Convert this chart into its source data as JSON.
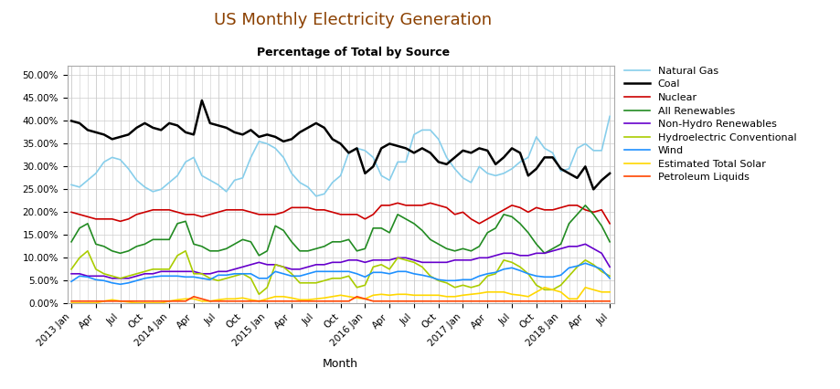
{
  "title": "US Monthly Electricity Generation",
  "subtitle": "Percentage of Total by Source",
  "xlabel": "Month",
  "ylim": [
    0.0,
    0.52
  ],
  "yticks": [
    0.0,
    0.05,
    0.1,
    0.15,
    0.2,
    0.25,
    0.3,
    0.35,
    0.4,
    0.45,
    0.5
  ],
  "title_color": "#8B4000",
  "subtitle_color": "#000000",
  "series": {
    "Natural Gas": {
      "color": "#87CEEB",
      "linewidth": 1.2,
      "values": [
        0.26,
        0.255,
        0.27,
        0.285,
        0.31,
        0.32,
        0.315,
        0.295,
        0.27,
        0.255,
        0.245,
        0.25,
        0.265,
        0.28,
        0.31,
        0.32,
        0.28,
        0.27,
        0.26,
        0.245,
        0.27,
        0.275,
        0.32,
        0.355,
        0.35,
        0.34,
        0.32,
        0.285,
        0.265,
        0.255,
        0.235,
        0.24,
        0.265,
        0.28,
        0.33,
        0.34,
        0.335,
        0.32,
        0.28,
        0.27,
        0.31,
        0.31,
        0.37,
        0.38,
        0.38,
        0.36,
        0.32,
        0.295,
        0.275,
        0.265,
        0.3,
        0.285,
        0.28,
        0.285,
        0.295,
        0.31,
        0.32,
        0.365,
        0.34,
        0.33,
        0.29,
        0.295,
        0.34,
        0.35,
        0.335,
        0.335,
        0.41
      ]
    },
    "Coal": {
      "color": "#000000",
      "linewidth": 1.8,
      "values": [
        0.4,
        0.395,
        0.38,
        0.375,
        0.37,
        0.36,
        0.365,
        0.37,
        0.385,
        0.395,
        0.385,
        0.38,
        0.395,
        0.39,
        0.375,
        0.37,
        0.445,
        0.395,
        0.39,
        0.385,
        0.375,
        0.37,
        0.38,
        0.365,
        0.37,
        0.365,
        0.355,
        0.36,
        0.375,
        0.385,
        0.395,
        0.385,
        0.36,
        0.35,
        0.33,
        0.34,
        0.285,
        0.3,
        0.34,
        0.35,
        0.345,
        0.34,
        0.33,
        0.34,
        0.33,
        0.31,
        0.305,
        0.32,
        0.335,
        0.33,
        0.34,
        0.335,
        0.305,
        0.32,
        0.34,
        0.33,
        0.28,
        0.295,
        0.32,
        0.32,
        0.295,
        0.285,
        0.275,
        0.3,
        0.25,
        0.27,
        0.285
      ]
    },
    "Nuclear": {
      "color": "#CC0000",
      "linewidth": 1.2,
      "values": [
        0.2,
        0.195,
        0.19,
        0.185,
        0.185,
        0.185,
        0.18,
        0.185,
        0.195,
        0.2,
        0.205,
        0.205,
        0.205,
        0.2,
        0.195,
        0.195,
        0.19,
        0.195,
        0.2,
        0.205,
        0.205,
        0.205,
        0.2,
        0.195,
        0.195,
        0.195,
        0.2,
        0.21,
        0.21,
        0.21,
        0.205,
        0.205,
        0.2,
        0.195,
        0.195,
        0.195,
        0.185,
        0.195,
        0.215,
        0.215,
        0.22,
        0.215,
        0.215,
        0.215,
        0.22,
        0.215,
        0.21,
        0.195,
        0.2,
        0.185,
        0.175,
        0.185,
        0.195,
        0.205,
        0.215,
        0.21,
        0.2,
        0.21,
        0.205,
        0.205,
        0.21,
        0.215,
        0.215,
        0.205,
        0.2,
        0.205,
        0.175
      ]
    },
    "All Renewables": {
      "color": "#228B22",
      "linewidth": 1.2,
      "values": [
        0.135,
        0.165,
        0.175,
        0.13,
        0.125,
        0.115,
        0.11,
        0.115,
        0.125,
        0.13,
        0.14,
        0.14,
        0.14,
        0.175,
        0.18,
        0.13,
        0.125,
        0.115,
        0.115,
        0.12,
        0.13,
        0.14,
        0.135,
        0.105,
        0.115,
        0.17,
        0.16,
        0.135,
        0.115,
        0.115,
        0.12,
        0.125,
        0.135,
        0.135,
        0.14,
        0.115,
        0.12,
        0.165,
        0.165,
        0.155,
        0.195,
        0.185,
        0.175,
        0.16,
        0.14,
        0.13,
        0.12,
        0.115,
        0.12,
        0.115,
        0.125,
        0.155,
        0.165,
        0.195,
        0.19,
        0.175,
        0.155,
        0.13,
        0.11,
        0.12,
        0.13,
        0.175,
        0.195,
        0.215,
        0.195,
        0.17,
        0.135
      ]
    },
    "Non-Hydro Renewables": {
      "color": "#6600CC",
      "linewidth": 1.2,
      "values": [
        0.065,
        0.065,
        0.06,
        0.06,
        0.06,
        0.055,
        0.055,
        0.055,
        0.06,
        0.065,
        0.065,
        0.07,
        0.07,
        0.07,
        0.07,
        0.07,
        0.065,
        0.065,
        0.07,
        0.07,
        0.075,
        0.08,
        0.085,
        0.09,
        0.085,
        0.085,
        0.08,
        0.075,
        0.075,
        0.08,
        0.085,
        0.085,
        0.09,
        0.09,
        0.095,
        0.095,
        0.09,
        0.095,
        0.095,
        0.095,
        0.1,
        0.1,
        0.095,
        0.09,
        0.09,
        0.09,
        0.09,
        0.095,
        0.095,
        0.095,
        0.1,
        0.1,
        0.105,
        0.11,
        0.11,
        0.105,
        0.105,
        0.11,
        0.11,
        0.115,
        0.12,
        0.125,
        0.125,
        0.13,
        0.12,
        0.11,
        0.08
      ]
    },
    "Hydroelectric Conventional": {
      "color": "#AACC00",
      "linewidth": 1.2,
      "values": [
        0.075,
        0.1,
        0.115,
        0.075,
        0.065,
        0.06,
        0.055,
        0.06,
        0.065,
        0.07,
        0.075,
        0.075,
        0.075,
        0.105,
        0.115,
        0.065,
        0.065,
        0.055,
        0.05,
        0.055,
        0.06,
        0.065,
        0.055,
        0.02,
        0.035,
        0.085,
        0.08,
        0.065,
        0.045,
        0.045,
        0.045,
        0.05,
        0.055,
        0.055,
        0.06,
        0.035,
        0.04,
        0.08,
        0.085,
        0.075,
        0.1,
        0.095,
        0.09,
        0.08,
        0.06,
        0.05,
        0.045,
        0.035,
        0.04,
        0.035,
        0.04,
        0.06,
        0.065,
        0.095,
        0.09,
        0.08,
        0.065,
        0.04,
        0.03,
        0.03,
        0.04,
        0.06,
        0.08,
        0.095,
        0.085,
        0.07,
        0.06
      ]
    },
    "Wind": {
      "color": "#1E90FF",
      "linewidth": 1.2,
      "values": [
        0.048,
        0.06,
        0.058,
        0.052,
        0.05,
        0.045,
        0.042,
        0.045,
        0.05,
        0.055,
        0.058,
        0.06,
        0.06,
        0.06,
        0.058,
        0.058,
        0.055,
        0.052,
        0.062,
        0.062,
        0.065,
        0.065,
        0.065,
        0.055,
        0.055,
        0.07,
        0.065,
        0.06,
        0.06,
        0.065,
        0.07,
        0.07,
        0.07,
        0.07,
        0.07,
        0.065,
        0.058,
        0.068,
        0.068,
        0.065,
        0.07,
        0.07,
        0.065,
        0.062,
        0.058,
        0.052,
        0.05,
        0.05,
        0.052,
        0.052,
        0.06,
        0.065,
        0.068,
        0.075,
        0.078,
        0.072,
        0.065,
        0.06,
        0.058,
        0.058,
        0.062,
        0.078,
        0.082,
        0.088,
        0.082,
        0.075,
        0.055
      ]
    },
    "Estimated Total Solar": {
      "color": "#FFD700",
      "linewidth": 1.2,
      "values": [
        0.001,
        0.001,
        0.001,
        0.001,
        0.005,
        0.008,
        0.005,
        0.003,
        0.001,
        0.001,
        0.001,
        0.001,
        0.005,
        0.008,
        0.01,
        0.01,
        0.005,
        0.005,
        0.008,
        0.01,
        0.01,
        0.012,
        0.008,
        0.005,
        0.01,
        0.015,
        0.015,
        0.012,
        0.008,
        0.008,
        0.01,
        0.012,
        0.015,
        0.018,
        0.015,
        0.012,
        0.01,
        0.018,
        0.02,
        0.018,
        0.02,
        0.02,
        0.018,
        0.018,
        0.018,
        0.018,
        0.015,
        0.015,
        0.018,
        0.02,
        0.022,
        0.025,
        0.025,
        0.025,
        0.02,
        0.018,
        0.015,
        0.025,
        0.035,
        0.03,
        0.025,
        0.01,
        0.01,
        0.035,
        0.03,
        0.025,
        0.025
      ]
    },
    "Petroleum Liquids": {
      "color": "#FF4500",
      "linewidth": 1.2,
      "values": [
        0.005,
        0.005,
        0.005,
        0.005,
        0.005,
        0.005,
        0.005,
        0.005,
        0.005,
        0.005,
        0.005,
        0.005,
        0.005,
        0.005,
        0.005,
        0.015,
        0.01,
        0.005,
        0.005,
        0.005,
        0.005,
        0.005,
        0.005,
        0.005,
        0.005,
        0.005,
        0.005,
        0.005,
        0.005,
        0.005,
        0.005,
        0.005,
        0.005,
        0.005,
        0.005,
        0.015,
        0.01,
        0.005,
        0.005,
        0.005,
        0.005,
        0.005,
        0.005,
        0.005,
        0.005,
        0.005,
        0.005,
        0.005,
        0.005,
        0.005,
        0.005,
        0.005,
        0.005,
        0.005,
        0.005,
        0.005,
        0.005,
        0.005,
        0.005,
        0.005,
        0.005,
        0.005,
        0.005,
        0.005,
        0.005,
        0.005,
        0.005
      ]
    }
  },
  "tick_labels": [
    "2013 Jan",
    "Apr",
    "Jul",
    "Oct",
    "2014 Jan",
    "Apr",
    "Jul",
    "Oct",
    "2015 Jan",
    "Apr",
    "Jul",
    "Oct",
    "2016 Jan",
    "Apr",
    "Jul",
    "Oct",
    "2017 Jan",
    "Apr",
    "Jul",
    "Oct",
    "2018 Jan",
    "Apr",
    "Jul"
  ],
  "tick_positions": [
    0,
    3,
    6,
    9,
    12,
    15,
    18,
    21,
    24,
    27,
    30,
    33,
    36,
    39,
    42,
    45,
    48,
    51,
    54,
    57,
    60,
    63,
    66
  ],
  "legend_order": [
    "Natural Gas",
    "Coal",
    "Nuclear",
    "All Renewables",
    "Non-Hydro Renewables",
    "Hydroelectric Conventional",
    "Wind",
    "Estimated Total Solar",
    "Petroleum Liquids"
  ],
  "bg_color": "#ffffff"
}
